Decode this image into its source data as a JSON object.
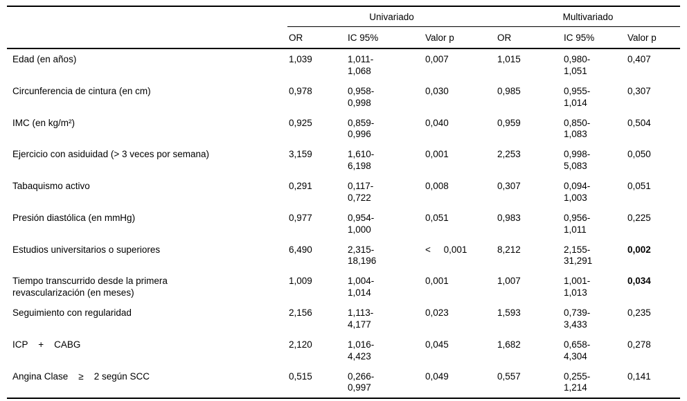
{
  "table": {
    "group_headers": [
      {
        "label": "Univariado"
      },
      {
        "label": "Multivariado"
      }
    ],
    "column_headers": [
      "OR",
      "IC 95%",
      "Valor p",
      "OR",
      "IC 95%",
      "Valor p"
    ],
    "rows": [
      {
        "label": "Edad (en años)",
        "univariado": {
          "or": "1,039",
          "ic": "1,011-1,068",
          "p": "0,007"
        },
        "multivariado": {
          "or": "1,015",
          "ic": "0,980-1,051",
          "p": "0,407"
        }
      },
      {
        "label": "Circunferencia de cintura (en cm)",
        "univariado": {
          "or": "0,978",
          "ic": "0,958-0,998",
          "p": "0,030"
        },
        "multivariado": {
          "or": "0,985",
          "ic": "0,955-1,014",
          "p": "0,307"
        }
      },
      {
        "label": "IMC (en kg/m²)",
        "univariado": {
          "or": "0,925",
          "ic": "0,859-0,996",
          "p": "0,040"
        },
        "multivariado": {
          "or": "0,959",
          "ic": "0,850-1,083",
          "p": "0,504"
        }
      },
      {
        "label": "Ejercicio con asiduidad (> 3 veces por semana)",
        "univariado": {
          "or": "3,159",
          "ic": "1,610-6,198",
          "p": "0,001"
        },
        "multivariado": {
          "or": "2,253",
          "ic": "0,998-5,083",
          "p": "0,050"
        }
      },
      {
        "label": "Tabaquismo activo",
        "univariado": {
          "or": "0,291",
          "ic": "0,117-0,722",
          "p": "0,008"
        },
        "multivariado": {
          "or": "0,307",
          "ic": "0,094-1,003",
          "p": "0,051"
        }
      },
      {
        "label": "Presión diastólica (en mmHg)",
        "univariado": {
          "or": "0,977",
          "ic": "0,954-1,000",
          "p": "0,051"
        },
        "multivariado": {
          "or": "0,983",
          "ic": "0,956-1,011",
          "p": "0,225"
        }
      },
      {
        "label": "Estudios universitarios o superiores",
        "univariado": {
          "or": "6,490",
          "ic": "2,315-18,196",
          "p": "<     0,001"
        },
        "multivariado": {
          "or": "8,212",
          "ic": "2,155-31,291",
          "p": "0,002",
          "p_bold": true
        }
      },
      {
        "label": "Tiempo transcurrido desde la primera\nrevascularización (en meses)",
        "univariado": {
          "or": "1,009",
          "ic": "1,004-1,014",
          "p": "0,001"
        },
        "multivariado": {
          "or": "1,007",
          "ic": "1,001-1,013",
          "p": "0,034",
          "p_bold": true
        }
      },
      {
        "label": "Seguimiento con regularidad",
        "univariado": {
          "or": "2,156",
          "ic": "1,113-4,177",
          "p": "0,023"
        },
        "multivariado": {
          "or": "1,593",
          "ic": "0,739-3,433",
          "p": "0,235"
        }
      },
      {
        "label": "ICP    +    CABG",
        "univariado": {
          "or": "2,120",
          "ic": "1,016-4,423",
          "p": "0,045"
        },
        "multivariado": {
          "or": "1,682",
          "ic": "0,658-4,304",
          "p": "0,278"
        }
      },
      {
        "label": "Angina Clase    ≥    2 según SCC",
        "univariado": {
          "or": "0,515",
          "ic": "0,266-0,997",
          "p": "0,049"
        },
        "multivariado": {
          "or": "0,557",
          "ic": "0,255-1,214",
          "p": "0,141"
        }
      }
    ]
  }
}
